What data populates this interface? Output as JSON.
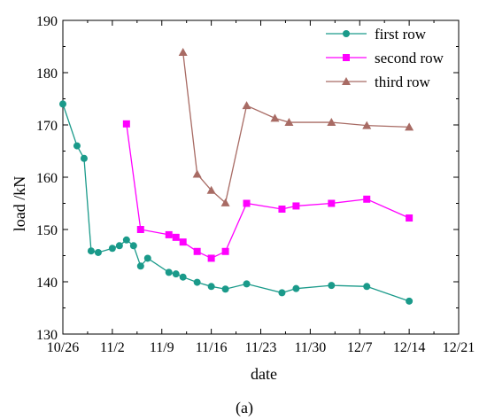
{
  "chart_data": {
    "type": "line",
    "title": "",
    "caption": "(a)",
    "xlabel": "date",
    "ylabel": "load /kN",
    "xlim": [
      "10/26",
      "12/21"
    ],
    "ylim": [
      130,
      190
    ],
    "x_ticks": [
      "10/26",
      "11/2",
      "11/9",
      "11/16",
      "11/23",
      "11/30",
      "12/7",
      "12/14",
      "12/21"
    ],
    "y_ticks": [
      130,
      140,
      150,
      160,
      170,
      180,
      190
    ],
    "grid": false,
    "legend_position": "top-right",
    "series": [
      {
        "name": "first row",
        "color": "#1a9a8a",
        "marker": "circle",
        "x": [
          "10/26",
          "10/28",
          "10/29",
          "10/30",
          "10/31",
          "11/2",
          "11/3",
          "11/4",
          "11/5",
          "11/6",
          "11/7",
          "11/10",
          "11/11",
          "11/12",
          "11/14",
          "11/16",
          "11/18",
          "11/21",
          "11/26",
          "11/28",
          "12/3",
          "12/8",
          "12/14"
        ],
        "y": [
          174,
          166,
          163.6,
          145.9,
          145.6,
          146.4,
          146.9,
          148,
          146.9,
          143,
          144.5,
          141.8,
          141.5,
          140.9,
          139.9,
          139.1,
          138.6,
          139.6,
          137.9,
          138.7,
          139.3,
          139.1,
          136.3
        ]
      },
      {
        "name": "second row",
        "color": "#ff00ff",
        "marker": "square",
        "x": [
          "11/4",
          "11/6",
          "11/10",
          "11/11",
          "11/12",
          "11/14",
          "11/16",
          "11/18",
          "11/21",
          "11/26",
          "11/28",
          "12/3",
          "12/8",
          "12/14"
        ],
        "y": [
          170.2,
          150,
          149,
          148.5,
          147.6,
          145.8,
          144.5,
          145.8,
          155,
          153.9,
          154.5,
          155,
          155.8,
          152.2
        ]
      },
      {
        "name": "third row",
        "color": "#a86b64",
        "marker": "triangle",
        "x": [
          "11/12",
          "11/14",
          "11/16",
          "11/18",
          "11/21",
          "11/25",
          "11/27",
          "12/3",
          "12/8",
          "12/14"
        ],
        "y": [
          183.9,
          160.6,
          157.5,
          155.1,
          173.7,
          171.3,
          170.5,
          170.5,
          169.9,
          169.6
        ]
      }
    ]
  }
}
